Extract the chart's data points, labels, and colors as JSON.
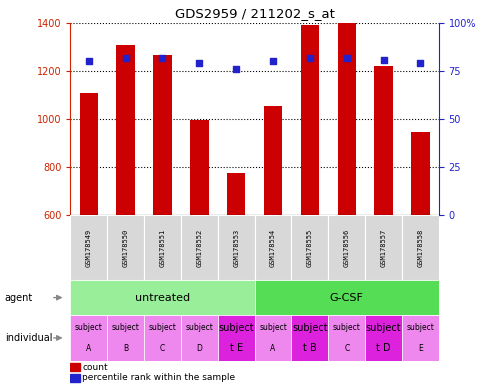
{
  "title": "GDS2959 / 211202_s_at",
  "samples": [
    "GSM178549",
    "GSM178550",
    "GSM178551",
    "GSM178552",
    "GSM178553",
    "GSM178554",
    "GSM178555",
    "GSM178556",
    "GSM178557",
    "GSM178558"
  ],
  "counts": [
    1110,
    1310,
    1265,
    995,
    775,
    1055,
    1390,
    1400,
    1220,
    945
  ],
  "percentile_ranks": [
    80,
    82,
    82,
    79,
    76,
    80,
    82,
    82,
    81,
    79
  ],
  "ylim_left": [
    600,
    1400
  ],
  "ylim_right": [
    0,
    100
  ],
  "yticks_left": [
    600,
    800,
    1000,
    1200,
    1400
  ],
  "yticks_right": [
    0,
    25,
    50,
    75,
    100
  ],
  "bar_color": "#cc0000",
  "dot_color": "#2222cc",
  "agent_labels": [
    "untreated",
    "G-CSF"
  ],
  "agent_colors": [
    "#99ee99",
    "#55dd55"
  ],
  "individual_labels_top": [
    "subject",
    "subject",
    "subject",
    "subject",
    "subject",
    "subject",
    "subject",
    "subject",
    "subject",
    "subject"
  ],
  "individual_labels_bot": [
    "A",
    "B",
    "C",
    "D",
    "t E",
    "A",
    "t B",
    "C",
    "t D",
    "E"
  ],
  "individual_highlight": [
    4,
    6,
    8
  ],
  "individual_color_normal": "#ee88ee",
  "individual_color_highlight": "#dd22dd",
  "tick_label_color_left": "#cc2200",
  "tick_label_color_right": "#2222cc",
  "bar_width": 0.5
}
